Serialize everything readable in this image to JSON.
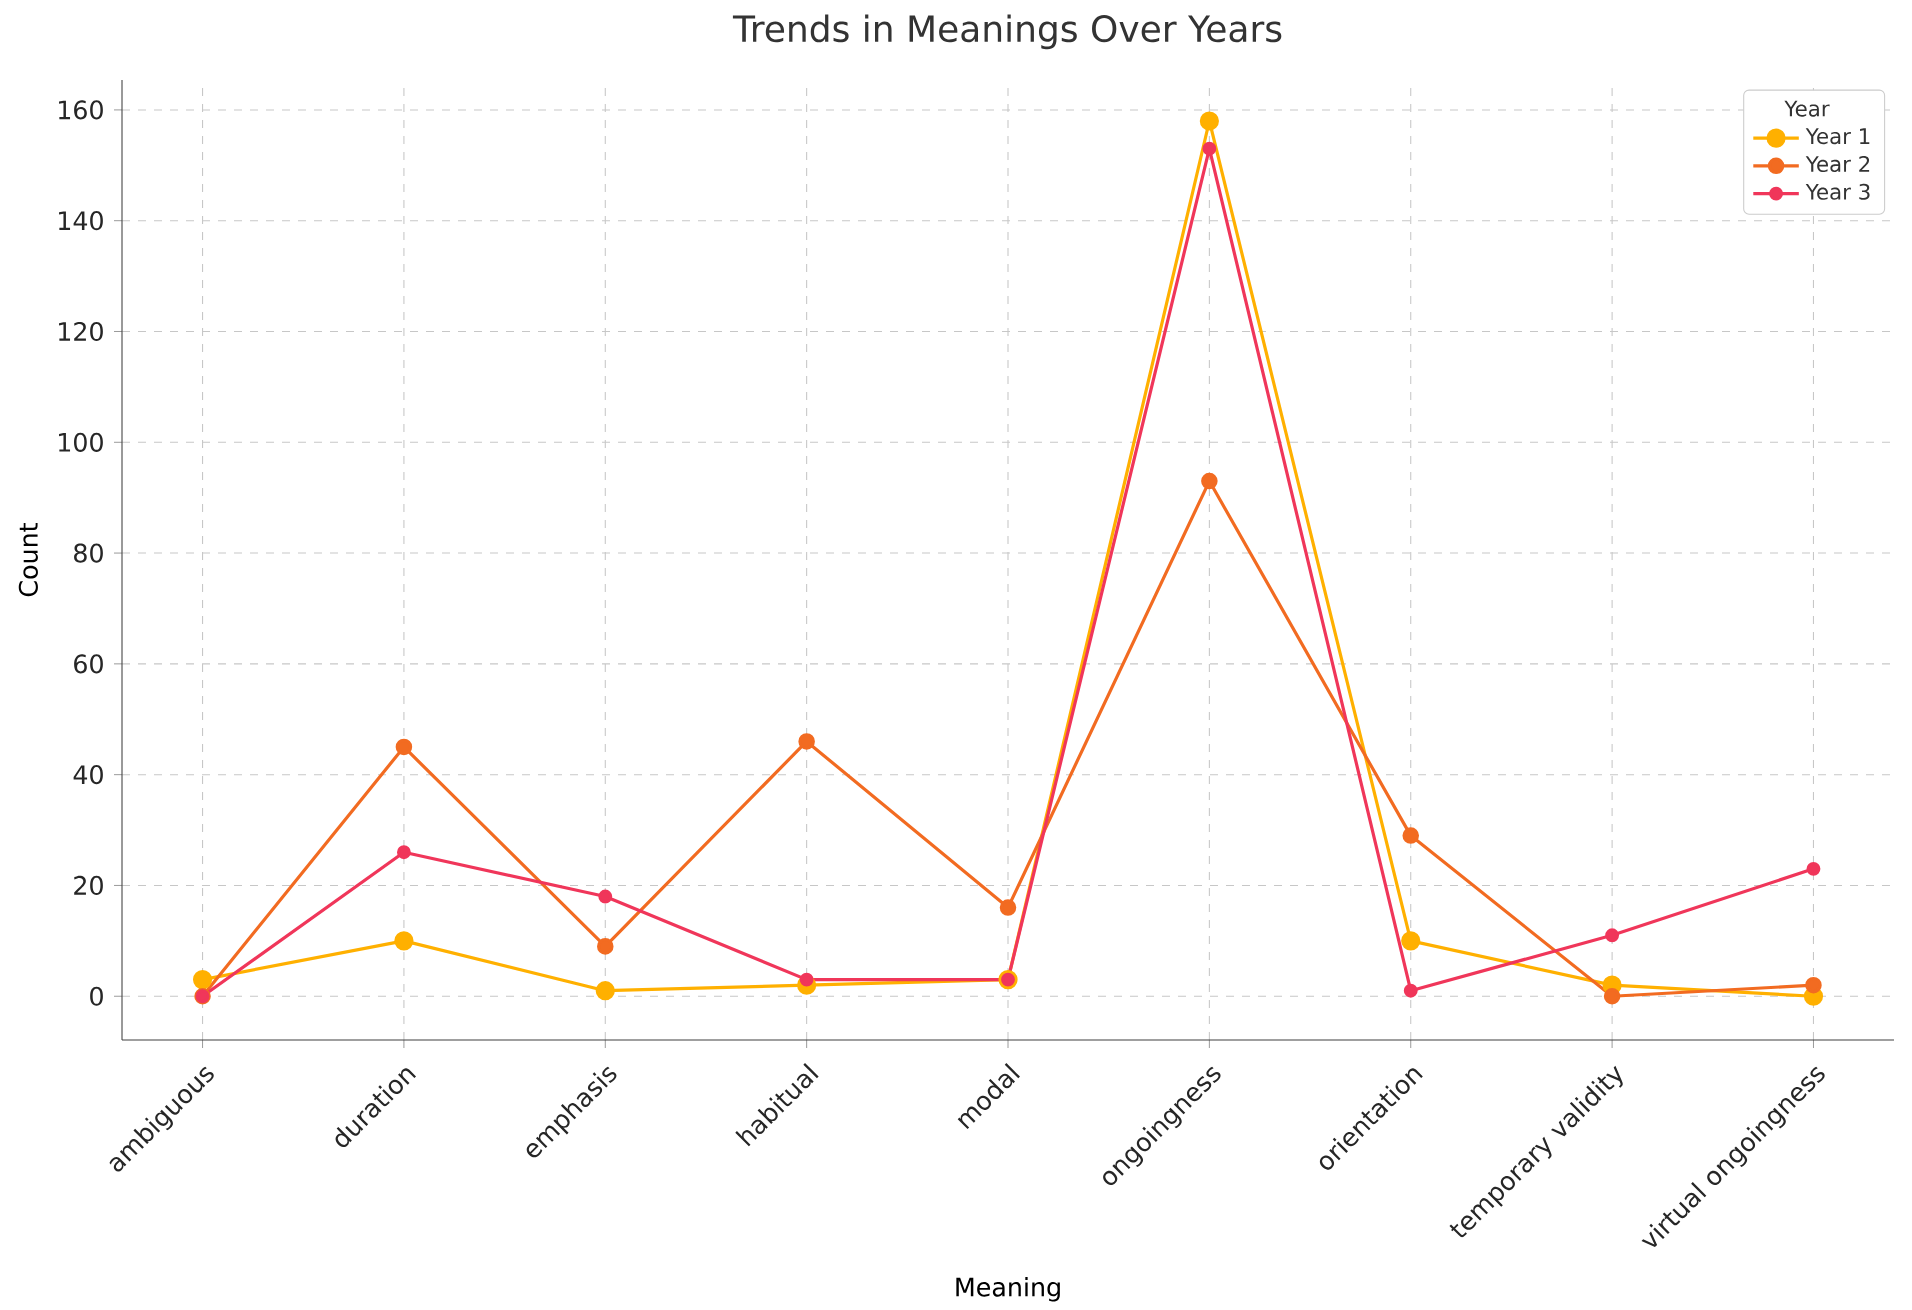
{
  "chart_data": {
    "type": "line",
    "title": "Trends in Meanings Over Years",
    "xlabel": "Meaning",
    "ylabel": "Count",
    "legend_title": "Year",
    "categories": [
      "ambiguous",
      "duration",
      "emphasis",
      "habitual",
      "modal",
      "ongoingness",
      "orientation",
      "temporary validity",
      "virtual ongoingness"
    ],
    "series": [
      {
        "name": "Year 1",
        "color": "#ffb000",
        "values": [
          3,
          10,
          1,
          2,
          3,
          158,
          10,
          2,
          0
        ]
      },
      {
        "name": "Year 2",
        "color": "#f26b21",
        "values": [
          0,
          45,
          9,
          46,
          16,
          93,
          29,
          0,
          2
        ]
      },
      {
        "name": "Year 3",
        "color": "#f0365a",
        "values": [
          0,
          26,
          18,
          3,
          3,
          153,
          1,
          11,
          23
        ]
      }
    ],
    "ylim": [
      -7.9,
      165.4
    ],
    "yticks": [
      0,
      20,
      40,
      60,
      80,
      100,
      120,
      140,
      160
    ],
    "grid": true,
    "legend": "top right",
    "marker": "circle",
    "line_style": "solid"
  }
}
